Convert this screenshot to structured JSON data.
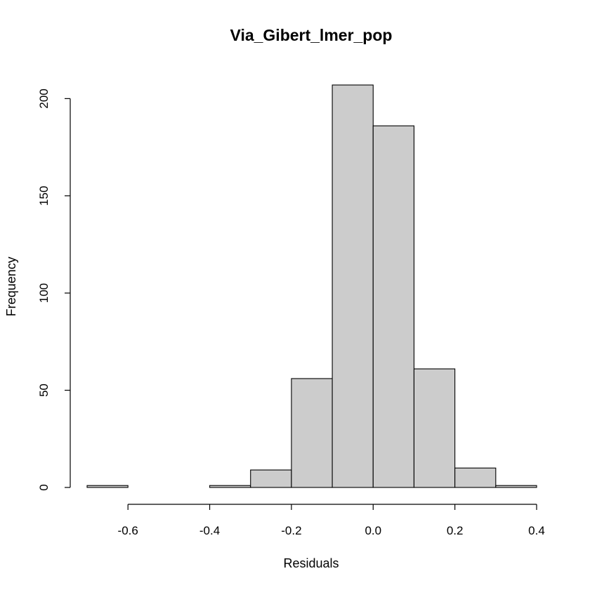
{
  "chart_data": {
    "type": "bar",
    "title": "Via_Gibert_lmer_pop",
    "xlabel": "Residuals",
    "ylabel": "Frequency",
    "bins": [
      {
        "start": -0.7,
        "end": -0.6,
        "count": 1
      },
      {
        "start": -0.6,
        "end": -0.5,
        "count": 0
      },
      {
        "start": -0.5,
        "end": -0.4,
        "count": 0
      },
      {
        "start": -0.4,
        "end": -0.3,
        "count": 1
      },
      {
        "start": -0.3,
        "end": -0.2,
        "count": 9
      },
      {
        "start": -0.2,
        "end": -0.1,
        "count": 56
      },
      {
        "start": -0.1,
        "end": 0.0,
        "count": 207
      },
      {
        "start": 0.0,
        "end": 0.1,
        "count": 186
      },
      {
        "start": 0.1,
        "end": 0.2,
        "count": 61
      },
      {
        "start": 0.2,
        "end": 0.3,
        "count": 10
      },
      {
        "start": 0.3,
        "end": 0.4,
        "count": 1
      }
    ],
    "xlim": [
      -0.7,
      0.4
    ],
    "ylim": [
      0,
      207
    ],
    "x_ticks": [
      -0.6,
      -0.4,
      -0.2,
      0.0,
      0.2,
      0.4
    ],
    "x_tick_labels": [
      "-0.6",
      "-0.4",
      "-0.2",
      "0.0",
      "0.2",
      "0.4"
    ],
    "y_ticks": [
      0,
      50,
      100,
      150,
      200
    ],
    "y_tick_labels": [
      "0",
      "50",
      "100",
      "150",
      "200"
    ],
    "bar_color": "#cccccc",
    "grid": false,
    "legend": "none"
  }
}
